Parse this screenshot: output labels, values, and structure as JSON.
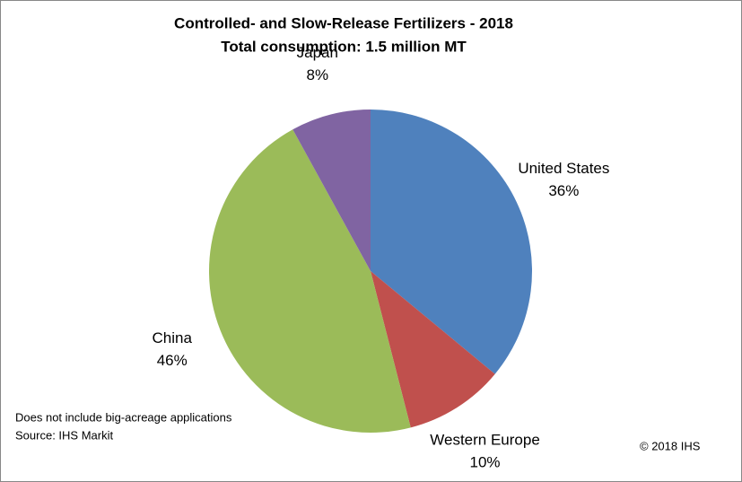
{
  "chart_data": {
    "type": "pie",
    "title": "Controlled- and Slow-Release Fertilizers - 2018",
    "subtitle": "Total consumption: 1.5 million MT",
    "categories": [
      "United States",
      "Western Europe",
      "China",
      "Japan"
    ],
    "values": [
      36,
      10,
      46,
      8
    ],
    "value_labels": [
      "36%",
      "10%",
      "46%",
      "8%"
    ],
    "colors": [
      "#4f81bd",
      "#c0504d",
      "#9bbb59",
      "#8064a2"
    ],
    "notes": [
      "Does not include big-acreage applications",
      "Source: IHS Markit"
    ],
    "copyright": "© 2018 IHS"
  }
}
